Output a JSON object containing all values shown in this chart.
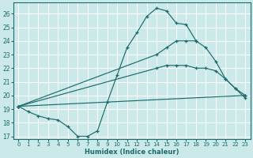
{
  "xlabel": "Humidex (Indice chaleur)",
  "xlim": [
    -0.5,
    23.5
  ],
  "ylim": [
    16.8,
    26.8
  ],
  "yticks": [
    17,
    18,
    19,
    20,
    21,
    22,
    23,
    24,
    25,
    26
  ],
  "xticks": [
    0,
    1,
    2,
    3,
    4,
    5,
    6,
    7,
    8,
    9,
    10,
    11,
    12,
    13,
    14,
    15,
    16,
    17,
    18,
    19,
    20,
    21,
    22,
    23
  ],
  "bg_color": "#cce9e9",
  "line_color": "#1a6b6b",
  "grid_color": "#ffffff",
  "line1_x": [
    0,
    1,
    2,
    3,
    4,
    5,
    6,
    7,
    8,
    9,
    10,
    11,
    12,
    13,
    14,
    15,
    16,
    17,
    18
  ],
  "line1_y": [
    19.2,
    18.8,
    18.5,
    18.3,
    18.2,
    17.7,
    17.0,
    17.0,
    17.4,
    19.5,
    21.5,
    23.5,
    24.6,
    25.8,
    26.4,
    26.2,
    25.3,
    25.2,
    24.0
  ],
  "line2_x": [
    0,
    23
  ],
  "line2_y": [
    19.2,
    20.0
  ],
  "line3_x": [
    0,
    14,
    15,
    16,
    17,
    18,
    19,
    20,
    21,
    22,
    23
  ],
  "line3_y": [
    19.2,
    22.0,
    22.2,
    22.2,
    22.2,
    22.0,
    22.0,
    21.8,
    21.2,
    20.5,
    19.8
  ],
  "line4_x": [
    0,
    14,
    15,
    16,
    17,
    18,
    19,
    20,
    21,
    22,
    23
  ],
  "line4_y": [
    19.2,
    23.0,
    23.5,
    24.0,
    24.0,
    24.0,
    23.5,
    22.5,
    21.2,
    20.5,
    20.0
  ]
}
